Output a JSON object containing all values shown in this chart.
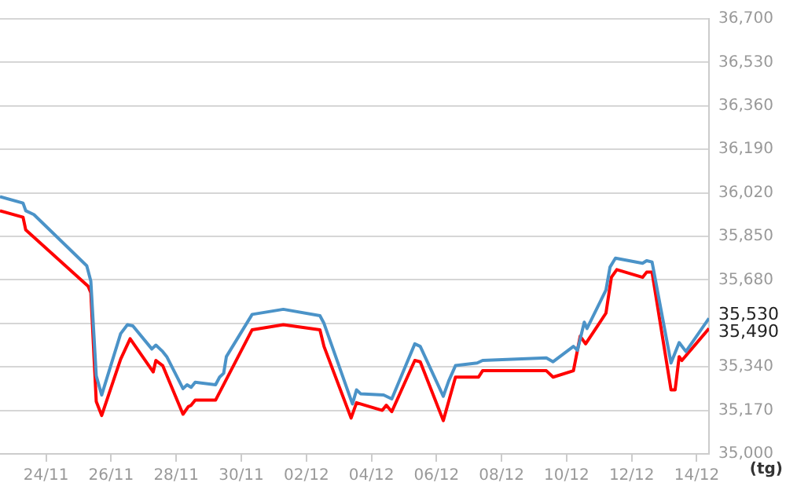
{
  "chart_data": {
    "type": "line",
    "xlabel": "(tg)",
    "xlim": [
      "--11-22T14:00",
      "--12-14T09:00"
    ],
    "xticks": [
      {
        "value": "--11-24",
        "label": "24/11"
      },
      {
        "value": "--11-26",
        "label": "26/11"
      },
      {
        "value": "--11-28",
        "label": "28/11"
      },
      {
        "value": "--11-30",
        "label": "30/11"
      },
      {
        "value": "--12-02",
        "label": "02/12"
      },
      {
        "value": "--12-04",
        "label": "04/12"
      },
      {
        "value": "--12-06",
        "label": "06/12"
      },
      {
        "value": "--12-08",
        "label": "08/12"
      },
      {
        "value": "--12-10",
        "label": "10/12"
      },
      {
        "value": "--12-12",
        "label": "12/12"
      },
      {
        "value": "--12-14",
        "label": "14/12"
      }
    ],
    "ylim": [
      35000,
      36700
    ],
    "yticks": [
      {
        "value": 35000,
        "label": "35,000"
      },
      {
        "value": 35170,
        "label": "35,170"
      },
      {
        "value": 35340,
        "label": "35,340"
      },
      {
        "value": 35510,
        "label": null
      },
      {
        "value": 35680,
        "label": "35,680"
      },
      {
        "value": 35850,
        "label": "35,850"
      },
      {
        "value": 36020,
        "label": "36,020"
      },
      {
        "value": 36190,
        "label": "36,190"
      },
      {
        "value": 36360,
        "label": "36,360"
      },
      {
        "value": 36530,
        "label": "36,530"
      },
      {
        "value": 36700,
        "label": "36,700"
      }
    ],
    "grid": "y",
    "legend": false,
    "marker": "none",
    "line_style": "solid",
    "series": [
      {
        "color": "#4b93c8",
        "x": [
          "--11-22T14:00",
          "--11-23T07:00",
          "--11-23T09:00",
          "--11-23T15:00",
          "--11-25T06:00",
          "--11-25T09:00",
          "--11-25T13:00",
          "--11-25T17:00",
          "--11-26T07:00",
          "--11-26T12:00",
          "--11-26T16:00",
          "--11-27T06:00",
          "--11-27T09:00",
          "--11-27T14:00",
          "--11-27T17:00",
          "--11-28T05:00",
          "--11-28T08:00",
          "--11-28T11:00",
          "--11-28T14:00",
          "--11-29T05:00",
          "--11-29T08:00",
          "--11-29T11:00",
          "--11-29T13:00",
          "--11-30T08:00",
          "--12-01T07:00",
          "--12-02T10:00",
          "--12-02T13:00",
          "--12-03T10:00",
          "--12-03T13:00",
          "--12-03T16:00",
          "--12-04T09:00",
          "--12-04T15:00",
          "--12-05T08:00",
          "--12-05T12:00",
          "--12-06T05:00",
          "--12-06T09:00",
          "--12-06T14:00",
          "--12-07T06:00",
          "--12-07T10:00",
          "--12-09T09:00",
          "--12-09T14:00",
          "--12-10T05:00",
          "--12-10T08:00",
          "--12-10T13:00",
          "--12-10T15:00",
          "--12-11T05:00",
          "--12-11T08:00",
          "--12-11T12:00",
          "--12-12T08:00",
          "--12-12T11:00",
          "--12-12T15:00",
          "--12-13T05:00",
          "--12-13T11:00",
          "--12-13T16:00",
          "--12-14T09:00"
        ],
        "values": [
          36005,
          35980,
          35950,
          35935,
          35735,
          35675,
          35305,
          35230,
          35470,
          35505,
          35500,
          35410,
          35425,
          35400,
          35380,
          35255,
          35270,
          35260,
          35280,
          35270,
          35300,
          35315,
          35380,
          35545,
          35565,
          35540,
          35510,
          35195,
          35250,
          35235,
          35230,
          35215,
          35430,
          35420,
          35225,
          35285,
          35345,
          35355,
          35365,
          35375,
          35360,
          35420,
          35405,
          35515,
          35490,
          35640,
          35730,
          35765,
          35745,
          35755,
          35750,
          35355,
          35435,
          35400,
          35530
        ]
      },
      {
        "color": "#ff0000",
        "x": [
          "--11-22T14:00",
          "--11-23T07:00",
          "--11-23T09:00",
          "--11-25T07:00",
          "--11-25T09:00",
          "--11-25T13:00",
          "--11-25T17:00",
          "--11-26T07:00",
          "--11-26T14:00",
          "--11-27T07:00",
          "--11-27T09:00",
          "--11-27T14:00",
          "--11-28T05:00",
          "--11-28T09:00",
          "--11-28T11:00",
          "--11-28T14:00",
          "--11-29T05:00",
          "--11-30T08:00",
          "--12-01T07:00",
          "--12-02T10:00",
          "--12-02T13:00",
          "--12-03T09:00",
          "--12-03T13:00",
          "--12-04T08:00",
          "--12-04T11:00",
          "--12-04T15:00",
          "--12-05T08:00",
          "--12-05T12:00",
          "--12-06T05:00",
          "--12-06T14:00",
          "--12-07T07:00",
          "--12-07T10:00",
          "--12-09T09:00",
          "--12-09T14:00",
          "--12-10T05:00",
          "--12-10T10:00",
          "--12-10T14:00",
          "--12-11T05:00",
          "--12-11T09:00",
          "--12-11T13:00",
          "--12-12T08:00",
          "--12-12T11:00",
          "--12-12T15:00",
          "--12-13T05:00",
          "--12-13T08:00",
          "--12-13T11:00",
          "--12-13T13:00",
          "--12-14T09:00"
        ],
        "values": [
          35950,
          35925,
          35875,
          35655,
          35630,
          35205,
          35150,
          35370,
          35450,
          35320,
          35365,
          35345,
          35155,
          35185,
          35190,
          35210,
          35210,
          35485,
          35505,
          35485,
          35420,
          35140,
          35200,
          35170,
          35190,
          35165,
          35365,
          35360,
          35130,
          35300,
          35300,
          35325,
          35325,
          35300,
          35325,
          35460,
          35430,
          35550,
          35690,
          35720,
          35690,
          35710,
          35710,
          35250,
          35250,
          35380,
          35365,
          35490
        ]
      }
    ],
    "annotations": [
      {
        "text": "35,530",
        "x": "--12-14T09:00",
        "y": 35530
      },
      {
        "text": "35,490",
        "x": "--12-14T09:00",
        "y": 35490
      }
    ]
  }
}
